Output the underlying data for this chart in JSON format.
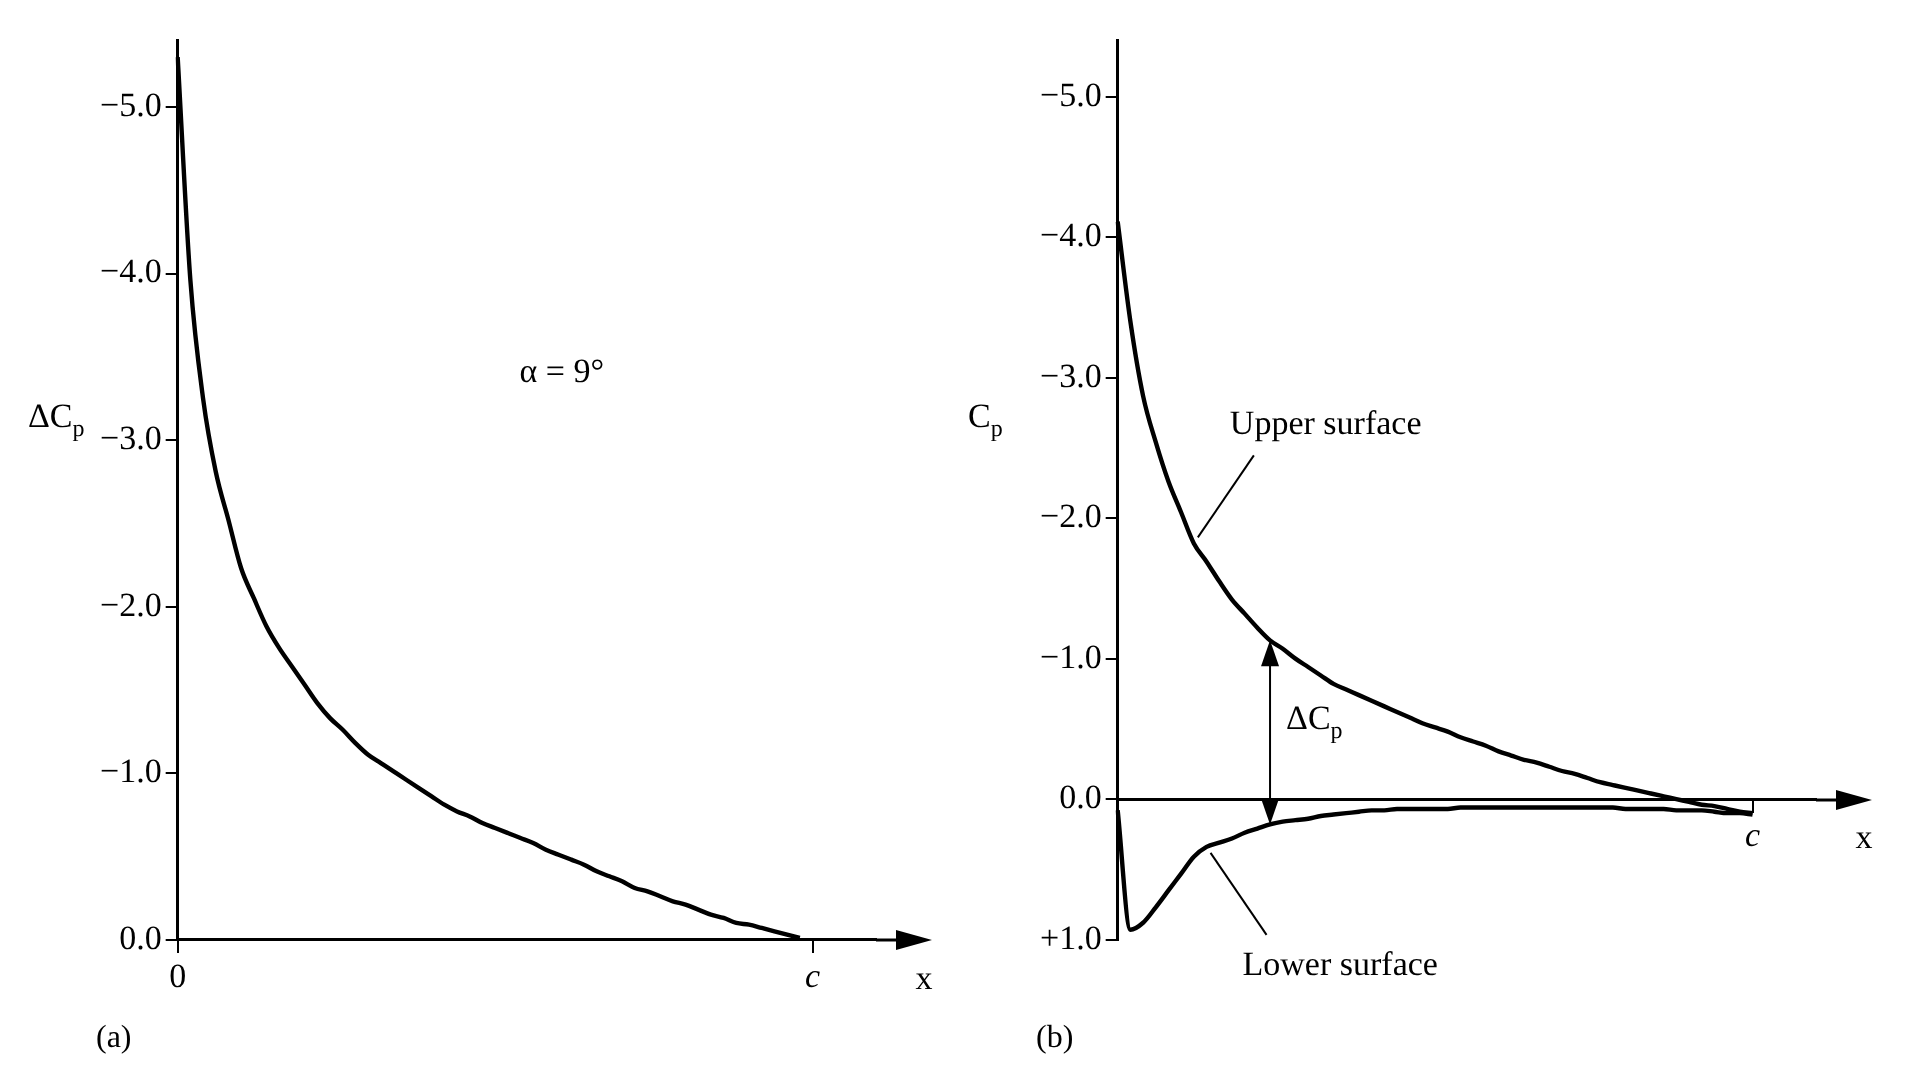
{
  "chart_data": [
    {
      "type": "line",
      "title": "(a)",
      "ylabel": "ΔC$_{p}$",
      "xlabel": "x",
      "categories": [
        "0",
        null,
        null,
        null,
        null,
        null,
        null,
        null,
        null,
        null,
        null,
        null,
        null,
        null,
        null,
        null,
        null,
        null,
        null,
        null,
        null,
        null,
        null,
        null,
        null,
        null,
        null,
        null,
        null,
        null,
        null,
        null,
        null,
        null,
        null,
        null,
        null,
        null,
        null,
        null,
        null,
        null,
        null,
        null,
        null,
        null,
        null,
        null,
        null,
        null,
        "c",
        null,
        null,
        null,
        null,
        null
      ],
      "series": [
        {
          "color": "#000000",
          "values": [
            -5.3,
            -3.96,
            -3.25,
            -2.81,
            -2.52,
            -2.23,
            -2.05,
            -1.88,
            -1.75,
            -1.64,
            -1.53,
            -1.42,
            -1.33,
            -1.26,
            -1.18,
            -1.11,
            -1.06,
            -1.01,
            -0.96,
            -0.91,
            -0.86,
            -0.81,
            -0.77,
            -0.74,
            -0.7,
            -0.67,
            -0.64,
            -0.61,
            -0.58,
            -0.54,
            -0.51,
            -0.48,
            -0.45,
            -0.41,
            -0.38,
            -0.35,
            -0.31,
            -0.29,
            -0.26,
            -0.23,
            -0.21,
            -0.18,
            -0.15,
            -0.13,
            -0.1,
            -0.09,
            -0.07,
            -0.05,
            -0.03,
            -0.01,
            null,
            null,
            null,
            null,
            null,
            null
          ]
        }
      ],
      "ylim": [
        0,
        -5.4
      ],
      "yticks": [
        {
          "value": 0,
          "label": "0.0"
        },
        {
          "value": -1,
          "label": "−1.0"
        },
        {
          "value": -2,
          "label": "−2.0"
        },
        {
          "value": -3,
          "label": "−3.0"
        },
        {
          "value": -4,
          "label": "−4.0"
        },
        {
          "value": -5,
          "label": "−5.0"
        }
      ],
      "annotations": [
        "α = 9°"
      ]
    },
    {
      "type": "line",
      "title": "(b)",
      "ylabel": "C$_{p}$",
      "xlabel": "x",
      "categories": [
        null,
        null,
        null,
        null,
        null,
        null,
        null,
        null,
        null,
        null,
        null,
        null,
        null,
        null,
        null,
        null,
        null,
        null,
        null,
        null,
        null,
        null,
        null,
        null,
        null,
        null,
        null,
        null,
        null,
        null,
        null,
        null,
        null,
        null,
        null,
        null,
        null,
        null,
        null,
        null,
        null,
        null,
        null,
        null,
        null,
        null,
        null,
        null,
        null,
        null,
        "c",
        null,
        null,
        null,
        null,
        null
      ],
      "series": [
        {
          "color": "#000000",
          "values": [
            -4.11,
            -3.4,
            -2.87,
            -2.54,
            -2.26,
            -2.04,
            -1.82,
            -1.69,
            -1.55,
            -1.42,
            -1.32,
            -1.22,
            -1.13,
            -1.07,
            -1.0,
            -0.94,
            -0.88,
            -0.82,
            -0.78,
            -0.74,
            -0.7,
            -0.66,
            -0.62,
            -0.58,
            -0.54,
            -0.51,
            -0.48,
            -0.44,
            -0.41,
            -0.38,
            -0.34,
            -0.31,
            -0.28,
            -0.26,
            -0.23,
            -0.2,
            -0.18,
            -0.15,
            -0.12,
            -0.1,
            -0.08,
            -0.06,
            -0.04,
            -0.02,
            0.0,
            0.02,
            0.04,
            0.05,
            0.07,
            0.09,
            0.1,
            null,
            null,
            null,
            null,
            null
          ]
        },
        {
          "color": "#000000",
          "values": [
            0.08,
            0.93,
            0.88,
            0.77,
            0.65,
            0.53,
            0.41,
            0.34,
            0.31,
            0.28,
            0.24,
            0.21,
            0.18,
            0.16,
            0.15,
            0.14,
            0.12,
            0.11,
            0.1,
            0.09,
            0.08,
            0.08,
            0.07,
            0.07,
            0.07,
            0.07,
            0.07,
            0.06,
            0.06,
            0.06,
            0.06,
            0.06,
            0.06,
            0.06,
            0.06,
            0.06,
            0.06,
            0.06,
            0.06,
            0.06,
            0.07,
            0.07,
            0.07,
            0.07,
            0.08,
            0.08,
            0.08,
            0.09,
            0.1,
            0.1,
            0.11,
            null,
            null,
            null,
            null,
            null
          ]
        }
      ],
      "ylim": [
        1.0,
        -5.4
      ],
      "yticks": [
        {
          "value": 1,
          "label": "+1.0"
        },
        {
          "value": 0,
          "label": "0.0"
        },
        {
          "value": -1,
          "label": "−1.0"
        },
        {
          "value": -2,
          "label": "−2.0"
        },
        {
          "value": -3,
          "label": "−3.0"
        },
        {
          "value": -4,
          "label": "−4.0"
        },
        {
          "value": -5,
          "label": "−5.0"
        }
      ],
      "annotations": [
        "ΔC$_{p}$",
        "Upper surface",
        "Lower surface"
      ]
    }
  ]
}
